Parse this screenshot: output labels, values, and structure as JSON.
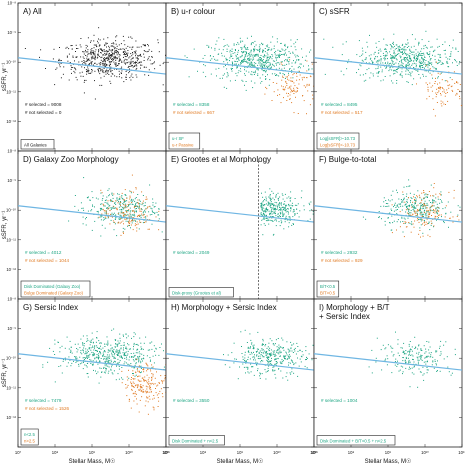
{
  "colors": {
    "black": "#222222",
    "green": "#1fa684",
    "orange": "#e07b24",
    "line": "#6fb6e3"
  },
  "chart_data": {
    "type": "scatter",
    "xlabel": "Stellar Mass, M☉",
    "ylabel": "sSFR, yr⁻¹",
    "xlim": [
      10000000,
      100000000000
    ],
    "ylim": [
      1e-13,
      1e-08
    ],
    "xscale": "log",
    "yscale": "log",
    "x_ticks": [
      "10⁷",
      "10⁸",
      "10⁹",
      "10¹⁰",
      "10¹¹"
    ],
    "y_ticks": [
      "10⁻⁸",
      "10⁻⁹",
      "10⁻¹⁰",
      "10⁻¹¹",
      "10⁻¹²"
    ],
    "panels": [
      {
        "id": "A",
        "title": "A) All",
        "sel_text": "# selected = 9008",
        "nonsel_text": "# not selected = 0",
        "legend": [
          "All Galaxies"
        ],
        "sel_color": "black",
        "dist": "all",
        "n_sel": 620,
        "n_non": 0
      },
      {
        "id": "B",
        "title": "B) u-r colour",
        "sel_text": "# selected = 8358",
        "nonsel_text": "# not selected = 667",
        "legend": [
          "u-r SF",
          "u-r Passive"
        ],
        "sel_color": "green",
        "dist": "all",
        "n_sel": 560,
        "n_non": 110
      },
      {
        "id": "C",
        "title": "C) sSFR",
        "sel_text": "# selected = 8495",
        "nonsel_text": "# not selected = 517",
        "legend": [
          "Log[sSFR]>-10.73",
          "Log[sSFR]<-10.73"
        ],
        "sel_color": "green",
        "dist": "all",
        "n_sel": 560,
        "n_non": 90
      },
      {
        "id": "D",
        "title": "D) Galaxy Zoo Morphology",
        "sel_text": "# selected = 4012",
        "nonsel_text": "# not selected = 1044",
        "legend": [
          "Disk Dominated (Galaxy Zoo)",
          "Bulge Dominated (Galaxy Zoo)"
        ],
        "sel_color": "green",
        "dist": "hi",
        "n_sel": 330,
        "n_non": 160
      },
      {
        "id": "E",
        "title": "E) Grootes et al Morphology",
        "sel_text": "# selected = 2049",
        "nonsel_text": "",
        "legend": [
          "Disk-proxy (Grootes et al)"
        ],
        "sel_color": "green",
        "dist": "grootes",
        "n_sel": 300,
        "n_non": 0
      },
      {
        "id": "F",
        "title": "F) Bulge-to-total",
        "sel_text": "# selected = 2932",
        "nonsel_text": "# not selected = 929",
        "legend": [
          "B/T<0.5",
          "B/T>0.5"
        ],
        "sel_color": "green",
        "dist": "hi",
        "n_sel": 300,
        "n_non": 150
      },
      {
        "id": "G",
        "title": "G) Sersic Index",
        "sel_text": "# selected = 7479",
        "nonsel_text": "# not selected = 1526",
        "legend": [
          "n<2.5",
          "n>2.5"
        ],
        "sel_color": "green",
        "dist": "all",
        "n_sel": 520,
        "n_non": 200
      },
      {
        "id": "H",
        "title": "H) Morphology + Sersic Index",
        "sel_text": "# selected = 3550",
        "nonsel_text": "",
        "legend": [
          "Disk Dominated + n<2.5"
        ],
        "sel_color": "green",
        "dist": "hi",
        "n_sel": 340,
        "n_non": 0
      },
      {
        "id": "I",
        "title": "I) Morphology + B/T\n    + Sersic Index",
        "sel_text": "# selected = 1004",
        "nonsel_text": "",
        "legend": [
          "Disk Dominated + B/T<0.5 + n<2.5"
        ],
        "sel_color": "green",
        "dist": "hi",
        "n_sel": 200,
        "n_non": 0
      }
    ],
    "fit_line": {
      "x": [
        10000000,
        100000000000
      ],
      "log_ssfr": [
        -9.85,
        -10.4
      ]
    }
  }
}
